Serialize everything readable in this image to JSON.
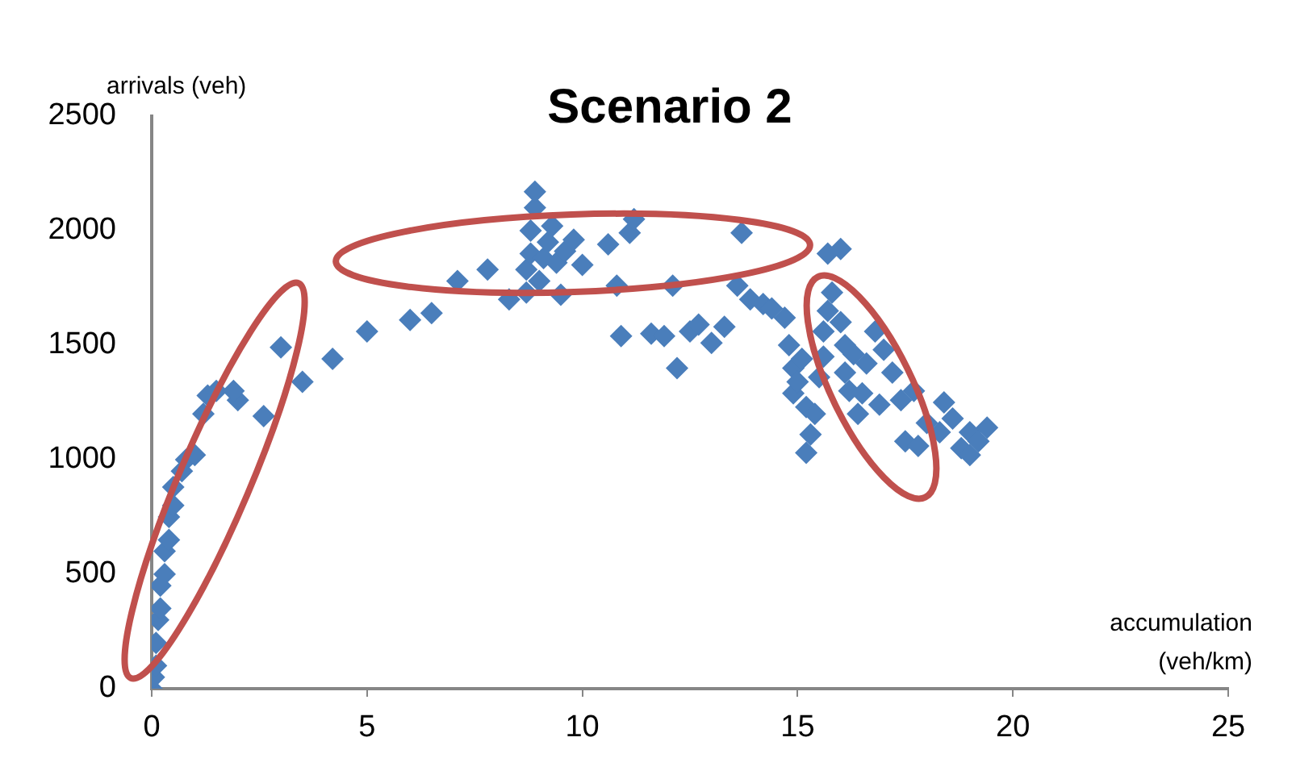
{
  "chart_data": {
    "type": "scatter",
    "title": "Scenario 2",
    "xlabel": "accumulation (veh/km)",
    "ylabel": "arrivals (veh)",
    "marker": "diamond",
    "grid": false,
    "legend": false,
    "xlim": [
      0,
      25
    ],
    "xticks": [
      0,
      5,
      10,
      15,
      20,
      25
    ],
    "ylim": [
      0,
      2500
    ],
    "yticks": [
      0,
      500,
      1000,
      1500,
      2000,
      2500
    ],
    "series": [
      {
        "color": "#4a7ebb",
        "x": [
          0,
          0.05,
          0.1,
          0.1,
          0.15,
          0.2,
          0.2,
          0.3,
          0.3,
          0.4,
          0.4,
          0.5,
          0.5,
          0.7,
          0.8,
          1.0,
          1.2,
          1.3,
          1.5,
          2.0,
          1.9,
          2.6,
          3.0,
          3.5,
          4.2,
          5.0,
          6.0,
          6.5,
          7.1,
          7.8,
          8.3,
          8.7,
          8.7,
          8.8,
          8.8,
          8.9,
          8.9,
          9.0,
          9.1,
          9.2,
          9.3,
          9.4,
          9.5,
          9.6,
          9.8,
          10.0,
          10.6,
          10.8,
          10.9,
          11.1,
          11.2,
          11.6,
          11.9,
          12.1,
          12.2,
          12.5,
          12.7,
          13.0,
          13.3,
          13.6,
          13.7,
          13.9,
          14.2,
          14.4,
          14.7,
          14.8,
          14.9,
          14.9,
          15.0,
          15.1,
          15.2,
          15.2,
          15.3,
          15.4,
          15.5,
          15.6,
          15.6,
          15.7,
          15.7,
          15.8,
          16.0,
          16.0,
          16.1,
          16.1,
          16.2,
          16.3,
          16.4,
          16.5,
          16.6,
          16.8,
          16.9,
          17.0,
          17.2,
          17.4,
          17.5,
          17.7,
          17.8,
          18.0,
          18.3,
          18.4,
          18.6,
          18.8,
          19.0,
          19.0,
          19.2,
          19.4
        ],
        "values": [
          0,
          50,
          100,
          200,
          300,
          350,
          450,
          500,
          600,
          650,
          750,
          800,
          880,
          950,
          1000,
          1020,
          1200,
          1280,
          1300,
          1260,
          1300,
          1190,
          1490,
          1340,
          1440,
          1560,
          1610,
          1640,
          1780,
          1830,
          1700,
          1730,
          1830,
          1900,
          2000,
          2100,
          2170,
          1780,
          1880,
          1950,
          2020,
          1860,
          1720,
          1910,
          1960,
          1850,
          1940,
          1760,
          1540,
          1990,
          2050,
          1550,
          1540,
          1760,
          1400,
          1560,
          1590,
          1510,
          1580,
          1760,
          1990,
          1700,
          1680,
          1660,
          1620,
          1500,
          1400,
          1290,
          1340,
          1440,
          1230,
          1030,
          1110,
          1200,
          1360,
          1450,
          1560,
          1650,
          1900,
          1730,
          1920,
          1600,
          1500,
          1380,
          1300,
          1460,
          1200,
          1290,
          1420,
          1560,
          1240,
          1480,
          1380,
          1260,
          1080,
          1300,
          1060,
          1160,
          1120,
          1250,
          1180,
          1050,
          1020,
          1120,
          1080,
          1140
        ]
      }
    ]
  }
}
